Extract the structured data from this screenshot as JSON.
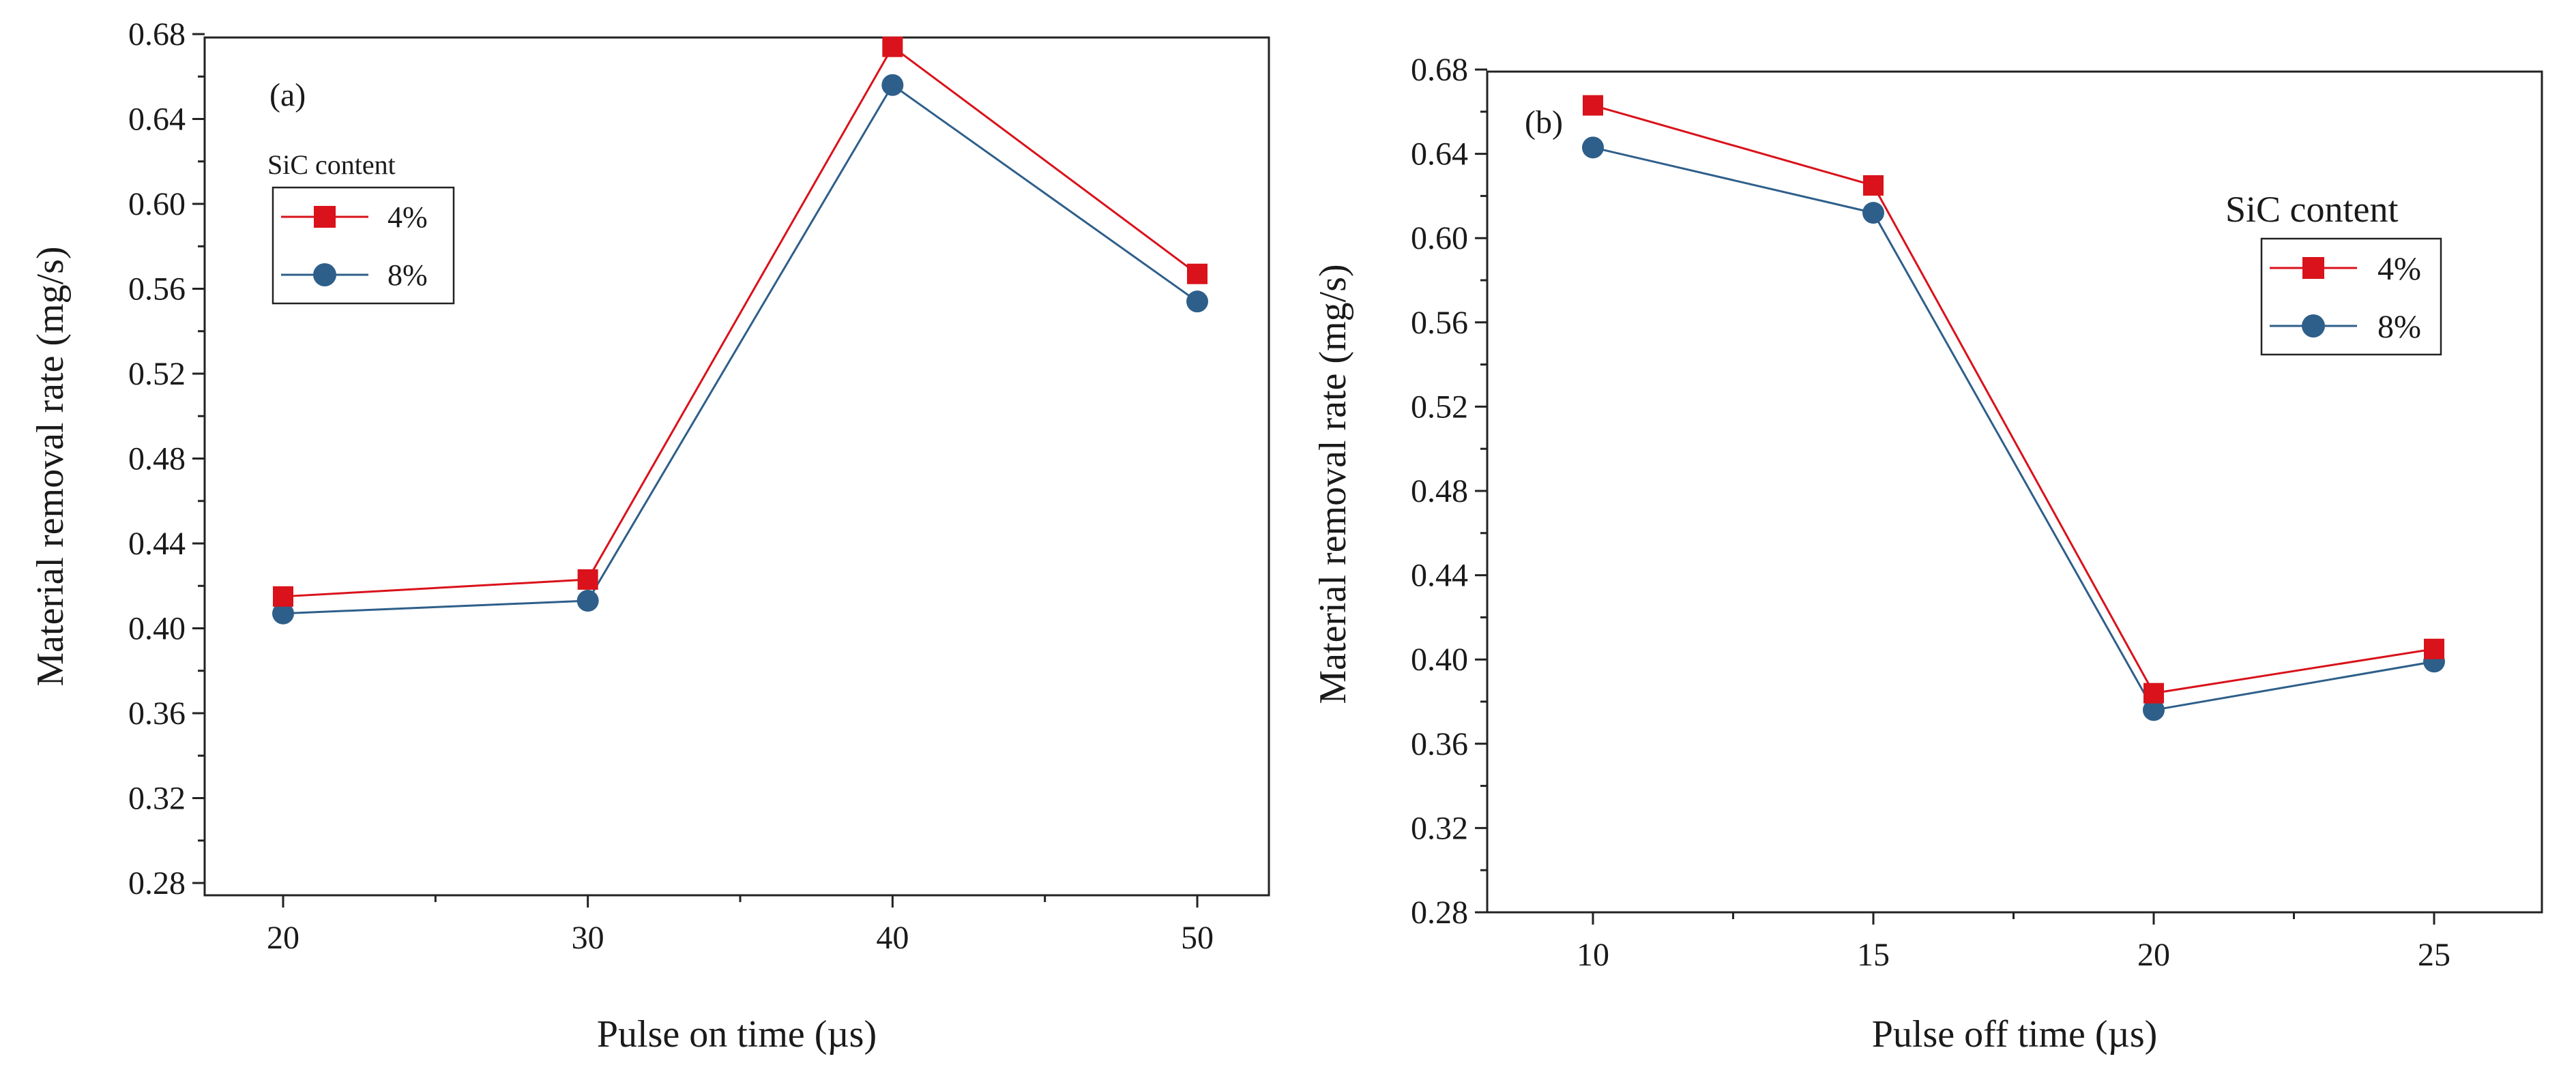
{
  "chart_data": [
    {
      "type": "line",
      "panel_label": "(a)",
      "title": "",
      "xlabel": "Pulse on time (µs)",
      "ylabel": "Material removal rate (mg/s)",
      "x": [
        20,
        30,
        40,
        50
      ],
      "x_tick_labels": [
        "20",
        "30",
        "40",
        "50"
      ],
      "ylim": [
        0.28,
        0.7
      ],
      "y_tick_labels": [
        "0.28",
        "0.32",
        "0.36",
        "0.40",
        "0.44",
        "0.48",
        "0.52",
        "0.56",
        "0.60",
        "0.64",
        "0.68"
      ],
      "legend": {
        "title": "SiC content",
        "placement": "top-left"
      },
      "series": [
        {
          "name": "4%",
          "marker": "square",
          "color": "#d9121b",
          "values": [
            0.415,
            0.423,
            0.674,
            0.567
          ]
        },
        {
          "name": "8%",
          "marker": "circle",
          "color": "#2e5f8a",
          "values": [
            0.407,
            0.413,
            0.656,
            0.554
          ]
        }
      ]
    },
    {
      "type": "line",
      "panel_label": "(b)",
      "title": "",
      "xlabel": "Pulse off time (µs)",
      "ylabel": "Material removal rate (mg/s)",
      "x": [
        10,
        15,
        20,
        25
      ],
      "x_tick_labels": [
        "10",
        "15",
        "20",
        "25"
      ],
      "ylim": [
        0.28,
        0.7
      ],
      "y_tick_labels": [
        "0.28",
        "0.32",
        "0.36",
        "0.40",
        "0.44",
        "0.48",
        "0.52",
        "0.56",
        "0.60",
        "0.64",
        "0.68"
      ],
      "legend": {
        "title": "SiC content",
        "placement": "top-right"
      },
      "series": [
        {
          "name": "4%",
          "marker": "square",
          "color": "#d9121b",
          "values": [
            0.663,
            0.625,
            0.384,
            0.405
          ]
        },
        {
          "name": "8%",
          "marker": "circle",
          "color": "#2e5f8a",
          "values": [
            0.643,
            0.612,
            0.376,
            0.399
          ]
        }
      ]
    }
  ]
}
